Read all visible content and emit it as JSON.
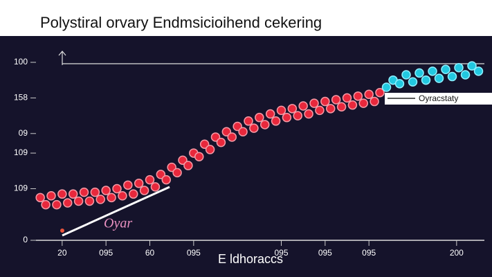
{
  "chart_data": {
    "type": "scatter",
    "title": "Polystiral orvary Endmsicioihend cekering",
    "x_label": "E ldhoraccs",
    "xlim": [
      9,
      213
    ],
    "ylim": [
      0,
      100
    ],
    "xticks": [
      20,
      {
        "value": 40,
        "label": "095"
      },
      60,
      {
        "value": 80,
        "label": "095"
      },
      {
        "value": 120,
        "label": "095"
      },
      {
        "value": 140,
        "label": "095"
      },
      {
        "value": 160,
        "label": "095"
      },
      200
    ],
    "yticks": [
      {
        "value": 0,
        "label": "0"
      },
      {
        "value": 29,
        "label": "109"
      },
      {
        "value": 49,
        "label": "109"
      },
      {
        "value": 60,
        "label": "09"
      },
      {
        "value": 80,
        "label": "158"
      },
      100
    ],
    "series": [
      {
        "name": "Oyar",
        "color": "#e8283c",
        "x": [
          10,
          12.5,
          15,
          17.5,
          20,
          22.5,
          25,
          27.5,
          30,
          32.5,
          35,
          37.5,
          40,
          42.5,
          45,
          47.5,
          50,
          52.5,
          55,
          57.5,
          60,
          62.5,
          65,
          67.5,
          70,
          72.5,
          75,
          77.5,
          80,
          82.5,
          85,
          87.5,
          90,
          92.5,
          95,
          97.5,
          100,
          102.5,
          105,
          107.5,
          110,
          112.5,
          115,
          117.5,
          120,
          122.5,
          125,
          127.5,
          130,
          132.5,
          135,
          137.5,
          140,
          142.5,
          145,
          147.5,
          150,
          152.5,
          155,
          157.5,
          160,
          162.5,
          165
        ],
        "values": [
          24,
          20,
          25,
          20,
          26,
          21,
          26,
          22,
          27,
          22,
          27,
          23,
          28,
          24,
          29,
          25,
          31,
          26,
          32,
          28,
          34,
          30,
          37,
          34,
          41,
          38,
          45,
          42,
          49,
          47,
          54,
          51,
          58,
          55,
          61,
          58,
          64,
          61,
          67,
          63,
          69,
          65,
          71,
          67,
          73,
          69,
          74,
          70,
          75.5,
          71,
          77,
          73,
          78,
          74,
          79,
          75,
          80,
          76,
          81,
          77,
          82,
          78,
          83
        ]
      },
      {
        "name": "Oyracstaty",
        "color": "#22c8e0",
        "x": [
          168,
          171,
          174,
          177,
          180,
          183,
          186,
          189,
          192,
          195,
          198,
          201,
          204,
          207,
          210
        ],
        "values": [
          86,
          90,
          88,
          93,
          89,
          94,
          90,
          95,
          91,
          96,
          92,
          97,
          93,
          98,
          95
        ]
      }
    ]
  }
}
